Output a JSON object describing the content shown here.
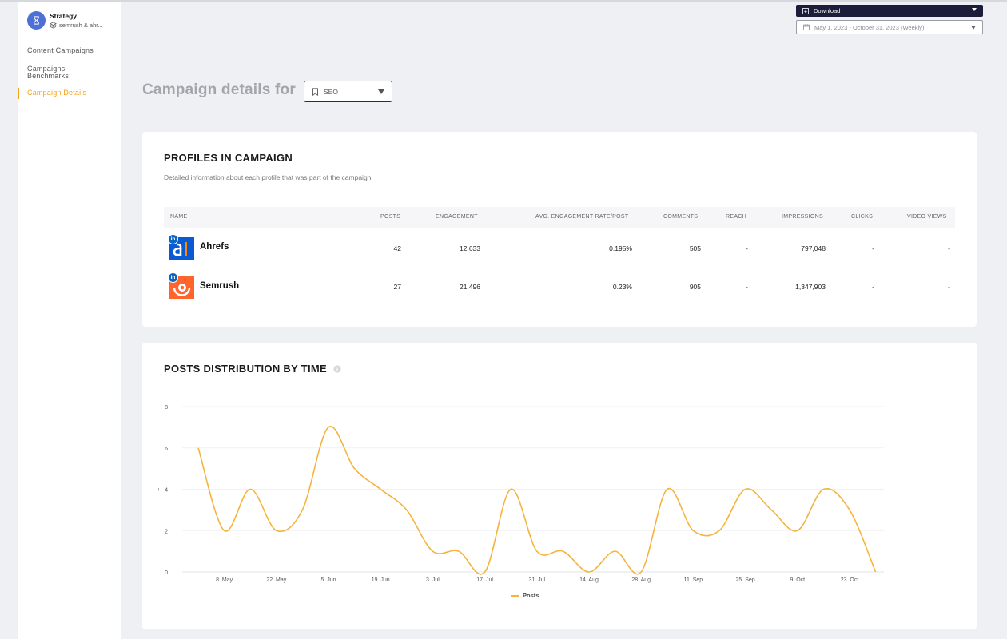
{
  "brand": {
    "title": "Strategy",
    "subtitle": "semrush & ahr..."
  },
  "sidebar": {
    "items": [
      {
        "label": "Content Campaigns"
      },
      {
        "label": "Campaigns Benchmarks"
      },
      {
        "label": "Campaign Details",
        "active": true
      }
    ]
  },
  "header": {
    "download_label": "Download",
    "date_range": "May 1, 2023 - October 31, 2023 (Weekly)",
    "title": "Campaign details for",
    "campaign": "SEO"
  },
  "profiles": {
    "title": "PROFILES IN CAMPAIGN",
    "description": "Detailed information about each profile that was part of the campaign.",
    "columns": [
      "NAME",
      "POSTS",
      "ENGAGEMENT",
      "AVG. ENGAGEMENT RATE/POST",
      "COMMENTS",
      "REACH",
      "IMPRESSIONS",
      "CLICKS",
      "VIDEO VIEWS"
    ],
    "rows": [
      {
        "name": "Ahrefs",
        "posts": "42",
        "engagement": "12,633",
        "avg_rate": "0.195%",
        "comments": "505",
        "reach": "-",
        "impressions": "797,048",
        "clicks": "-",
        "video_views": "-"
      },
      {
        "name": "Semrush",
        "posts": "27",
        "engagement": "21,496",
        "avg_rate": "0.23%",
        "comments": "905",
        "reach": "-",
        "impressions": "1,347,903",
        "clicks": "-",
        "video_views": "-"
      }
    ]
  },
  "distribution": {
    "title": "POSTS DISTRIBUTION BY TIME"
  },
  "chart_data": {
    "type": "line",
    "title": "POSTS DISTRIBUTION BY TIME",
    "ylabel": "%",
    "ylim": [
      0,
      8
    ],
    "yticks": [
      0,
      2,
      4,
      6,
      8
    ],
    "xticks": [
      "8. May",
      "22. May",
      "5. Jun",
      "19. Jun",
      "3. Jul",
      "17. Jul",
      "31. Jul",
      "14. Aug",
      "28. Aug",
      "11. Sep",
      "25. Sep",
      "9. Oct",
      "23. Oct"
    ],
    "grid": true,
    "legend": "bottom",
    "series": [
      {
        "name": "Posts",
        "color": "#f4b43d",
        "x": [
          "May 1",
          "May 8",
          "May 15",
          "May 22",
          "May 29",
          "Jun 5",
          "Jun 12",
          "Jun 19",
          "Jun 26",
          "Jul 3",
          "Jul 10",
          "Jul 17",
          "Jul 24",
          "Jul 31",
          "Aug 7",
          "Aug 14",
          "Aug 21",
          "Aug 28",
          "Sep 4",
          "Sep 11",
          "Sep 18",
          "Sep 25",
          "Oct 2",
          "Oct 9",
          "Oct 16",
          "Oct 23",
          "Oct 30"
        ],
        "values": [
          6,
          2,
          4,
          2,
          3,
          7,
          5,
          4,
          3,
          1,
          1,
          0,
          4,
          1,
          1,
          0,
          1,
          0,
          4,
          2,
          2,
          4,
          3,
          2,
          4,
          3,
          0
        ]
      }
    ]
  }
}
